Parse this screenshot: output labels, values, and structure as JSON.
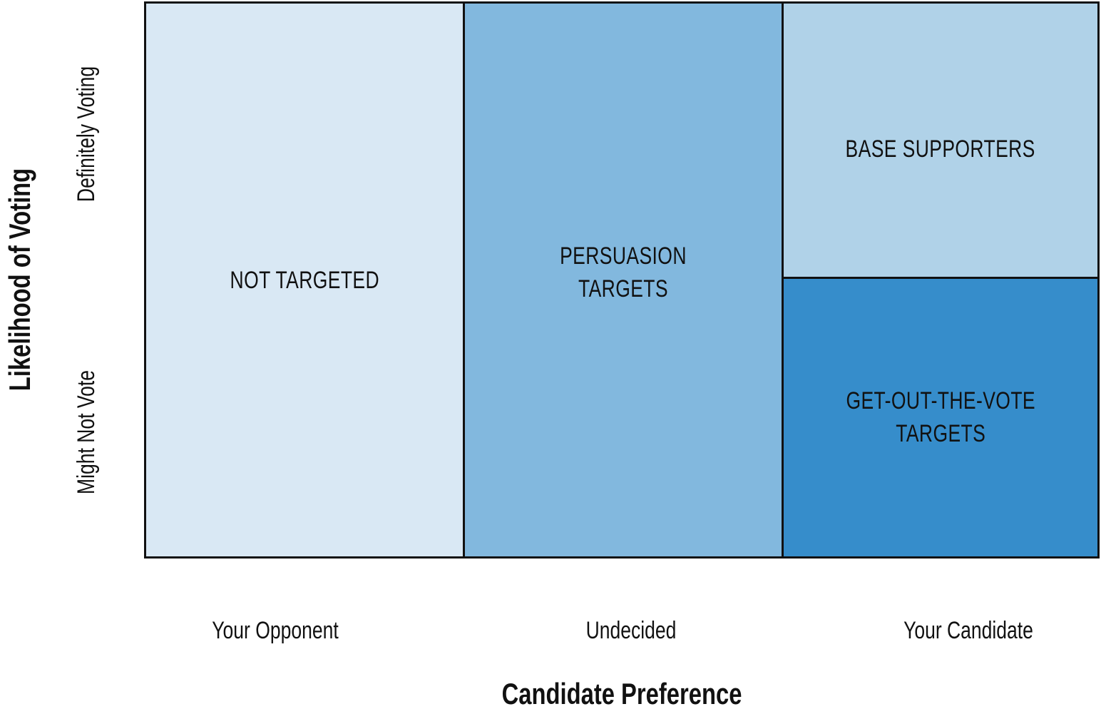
{
  "axes": {
    "x_title": "Candidate Preference",
    "x_ticks": [
      "Your Opponent",
      "Undecided",
      "Your Candidate"
    ],
    "y_title": "Likelihood of Voting",
    "y_ticks": {
      "top": "Definitely Voting",
      "bottom": "Might Not Vote"
    }
  },
  "cells": {
    "not_targeted": {
      "lines": [
        "NOT TARGETED"
      ],
      "color": "#d9e8f4"
    },
    "persuasion": {
      "lines": [
        "PERSUASION",
        "TARGETS"
      ],
      "color": "#82b8de"
    },
    "base": {
      "lines": [
        "BASE SUPPORTERS"
      ],
      "color": "#b0d2e8"
    },
    "gotv": {
      "lines": [
        "GET-OUT-THE-VOTE",
        "TARGETS"
      ],
      "color": "#368dcb"
    }
  },
  "border_color": "#111111"
}
